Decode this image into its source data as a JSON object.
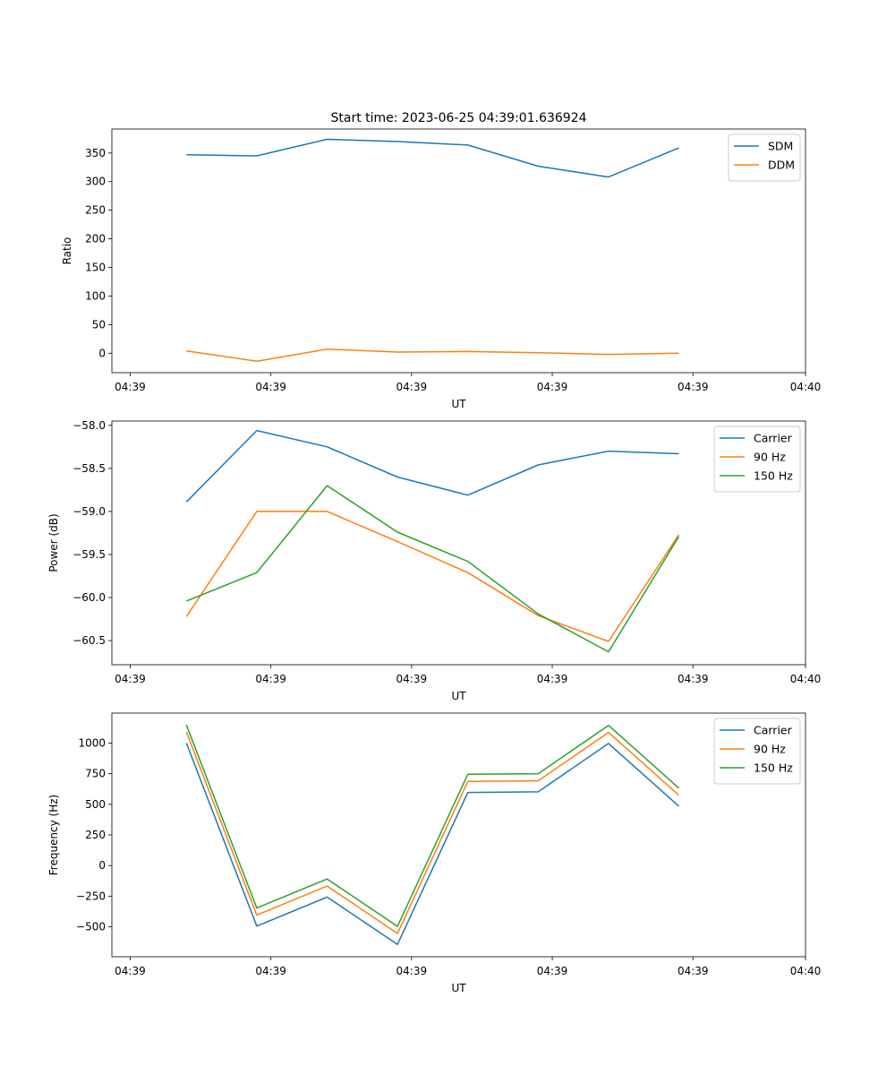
{
  "figure": {
    "title": "Start time: 2023-06-25 04:39:01.636924"
  },
  "colors": {
    "blue": "#1f77b4",
    "orange": "#ff7f0e",
    "green": "#2ca02c",
    "legend_border": "#cccccc"
  },
  "chart_data": [
    {
      "type": "line",
      "title": "Start time: 2023-06-25 04:39:01.636924",
      "xlabel": "UT",
      "ylabel": "Ratio",
      "x": [
        1.6,
        2.1,
        2.6,
        3.1,
        3.6,
        4.1,
        4.6,
        5.1
      ],
      "xlim": [
        1.07,
        6.0
      ],
      "xticks": [
        1.2,
        2.2,
        3.2,
        4.2,
        5.2,
        6.0
      ],
      "xticklabels": [
        "04:39",
        "04:39",
        "04:39",
        "04:39",
        "04:39",
        "04:40"
      ],
      "ylim": [
        -34,
        392
      ],
      "yticks": [
        0,
        50,
        100,
        150,
        200,
        250,
        300,
        350
      ],
      "yticklabels": [
        "0",
        "50",
        "100",
        "150",
        "200",
        "250",
        "300",
        "350"
      ],
      "legend": "top-right",
      "grid": false,
      "series": [
        {
          "name": "SDM",
          "color": "#1f77b4",
          "values": [
            347,
            345,
            374,
            370,
            364,
            327,
            308,
            359
          ]
        },
        {
          "name": "DDM",
          "color": "#ff7f0e",
          "values": [
            4,
            -14,
            7,
            2,
            3,
            1,
            -2,
            0
          ]
        }
      ]
    },
    {
      "type": "line",
      "title": "",
      "xlabel": "UT",
      "ylabel": "Power (dB)",
      "x": [
        1.6,
        2.1,
        2.6,
        3.1,
        3.6,
        4.1,
        4.6,
        5.1
      ],
      "xlim": [
        1.07,
        6.0
      ],
      "xticks": [
        1.2,
        2.2,
        3.2,
        4.2,
        5.2,
        6.0
      ],
      "xticklabels": [
        "04:39",
        "04:39",
        "04:39",
        "04:39",
        "04:39",
        "04:40"
      ],
      "ylim": [
        -60.78,
        -57.95
      ],
      "yticks": [
        -60.5,
        -60.0,
        -59.5,
        -59.0,
        -58.5,
        -58.0
      ],
      "yticklabels": [
        "−60.5",
        "−60.0",
        "−59.5",
        "−59.0",
        "−58.5",
        "−58.0"
      ],
      "legend": "top-right",
      "grid": false,
      "series": [
        {
          "name": "Carrier",
          "color": "#1f77b4",
          "values": [
            -58.89,
            -58.06,
            -58.25,
            -58.6,
            -58.81,
            -58.46,
            -58.3,
            -58.33
          ]
        },
        {
          "name": "90 Hz",
          "color": "#ff7f0e",
          "values": [
            -60.22,
            -59.0,
            -59.0,
            -59.35,
            -59.71,
            -60.21,
            -60.51,
            -59.27
          ]
        },
        {
          "name": "150 Hz",
          "color": "#2ca02c",
          "values": [
            -60.04,
            -59.71,
            -58.7,
            -59.24,
            -59.58,
            -60.19,
            -60.63,
            -59.29
          ]
        }
      ]
    },
    {
      "type": "line",
      "title": "",
      "xlabel": "UT",
      "ylabel": "Frequency (Hz)",
      "x": [
        1.6,
        2.1,
        2.6,
        3.1,
        3.6,
        4.1,
        4.6,
        5.1
      ],
      "xlim": [
        1.07,
        6.0
      ],
      "xticks": [
        1.2,
        2.2,
        3.2,
        4.2,
        5.2,
        6.0
      ],
      "xticklabels": [
        "04:39",
        "04:39",
        "04:39",
        "04:39",
        "04:39",
        "04:40"
      ],
      "ylim": [
        -745,
        1245
      ],
      "yticks": [
        -500,
        -250,
        0,
        250,
        500,
        750,
        1000
      ],
      "yticklabels": [
        "−500",
        "−250",
        "0",
        "250",
        "500",
        "750",
        "1000"
      ],
      "legend": "top-right",
      "grid": false,
      "series": [
        {
          "name": "Carrier",
          "color": "#1f77b4",
          "values": [
            1000,
            -495,
            -258,
            -645,
            597,
            602,
            997,
            484
          ]
        },
        {
          "name": "90 Hz",
          "color": "#ff7f0e",
          "values": [
            1090,
            -405,
            -168,
            -555,
            687,
            692,
            1087,
            574
          ]
        },
        {
          "name": "150 Hz",
          "color": "#2ca02c",
          "values": [
            1148,
            -347,
            -110,
            -497,
            745,
            750,
            1145,
            632
          ]
        }
      ]
    }
  ]
}
